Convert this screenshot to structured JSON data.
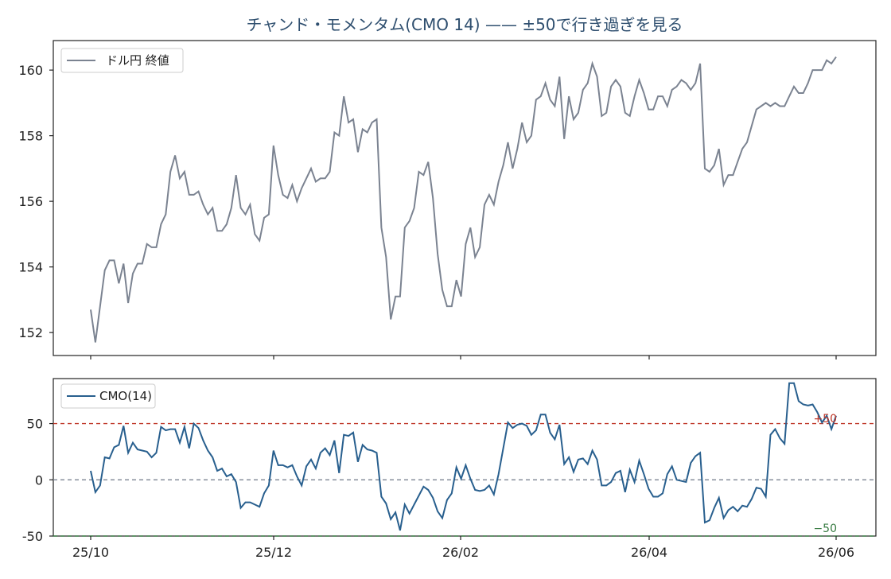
{
  "chart_data": [
    {
      "type": "line",
      "title": "チャンド・モメンタム(CMO 14) —— ±50で行き過ぎを見る",
      "xlabel": "",
      "ylabel": "",
      "x_tick_labels": [
        "25/10",
        "25/12",
        "26/02",
        "26/04",
        "26/06"
      ],
      "y_ticks": [
        152,
        154,
        156,
        158,
        160
      ],
      "ylim": [
        151.3,
        160.9
      ],
      "grid": false,
      "legend_position": "top-left",
      "series": [
        {
          "name": "ドル円 終値",
          "color": "#7b8391",
          "values": [
            152.7,
            151.7,
            152.8,
            153.9,
            154.2,
            154.2,
            153.5,
            154.1,
            152.9,
            153.8,
            154.1,
            154.1,
            154.7,
            154.6,
            154.6,
            155.3,
            155.6,
            156.9,
            157.4,
            156.7,
            156.9,
            156.2,
            156.2,
            156.3,
            155.9,
            155.6,
            155.8,
            155.1,
            155.1,
            155.3,
            155.8,
            156.8,
            155.8,
            155.6,
            155.9,
            155.0,
            154.8,
            155.5,
            155.6,
            157.7,
            156.8,
            156.2,
            156.1,
            156.5,
            156.0,
            156.4,
            156.7,
            157.0,
            156.6,
            156.7,
            156.7,
            156.9,
            158.1,
            158.0,
            159.2,
            158.4,
            158.5,
            157.5,
            158.2,
            158.1,
            158.4,
            158.5,
            155.2,
            154.3,
            152.4,
            153.1,
            153.1,
            155.2,
            155.4,
            155.8,
            156.9,
            156.8,
            157.2,
            156.1,
            154.4,
            153.3,
            152.8,
            152.8,
            153.6,
            153.1,
            154.7,
            155.2,
            154.3,
            154.6,
            155.9,
            156.2,
            155.9,
            156.6,
            157.1,
            157.8,
            157.0,
            157.6,
            158.4,
            157.8,
            158.0,
            159.1,
            159.2,
            159.6,
            159.1,
            158.9,
            159.8,
            157.9,
            159.2,
            158.5,
            158.7,
            159.4,
            159.6,
            160.2,
            159.8,
            158.6,
            158.7,
            159.5,
            159.7,
            159.5,
            158.7,
            158.6,
            159.2,
            159.7,
            159.3,
            158.8,
            158.8,
            159.2,
            159.2,
            158.9,
            159.4,
            159.5,
            159.7,
            159.6,
            159.4,
            159.6,
            160.2,
            157.0,
            156.9,
            157.1,
            157.6,
            156.5,
            156.8,
            156.8,
            157.2,
            157.6,
            157.8,
            158.3,
            158.8,
            158.9,
            159.0,
            158.9,
            159.0,
            158.9,
            158.9,
            159.2,
            159.5,
            159.3,
            159.3,
            159.6,
            160.0,
            160.0,
            160.0,
            160.3,
            160.2,
            160.4
          ]
        }
      ]
    },
    {
      "type": "line",
      "title": "",
      "xlabel": "",
      "ylabel": "",
      "x_tick_labels": [
        "25/10",
        "25/12",
        "26/02",
        "26/04",
        "26/06"
      ],
      "y_ticks": [
        -50,
        0,
        50
      ],
      "ylim": [
        -50,
        90
      ],
      "grid": false,
      "legend_position": "top-left",
      "reference_lines": [
        {
          "value": 50,
          "label": "+50",
          "color": "#c0392b"
        },
        {
          "value": 0,
          "label": "",
          "color": "#7b8391"
        },
        {
          "value": -50,
          "label": "−50",
          "color": "#3a7d44"
        }
      ],
      "series": [
        {
          "name": "CMO(14)",
          "color": "#285f8e",
          "values": [
            8,
            -11,
            -5,
            20,
            19,
            29,
            31,
            48,
            24,
            33,
            27,
            26,
            25,
            20,
            24,
            47,
            44,
            45,
            45,
            33,
            47,
            28,
            50,
            46,
            35,
            26,
            20,
            8,
            10,
            3,
            5,
            -2,
            -25,
            -20,
            -20,
            -22,
            -24,
            -12,
            -5,
            26,
            13,
            13,
            11,
            13,
            3,
            -5,
            12,
            18,
            10,
            24,
            28,
            22,
            35,
            6,
            40,
            39,
            42,
            16,
            31,
            27,
            26,
            24,
            -15,
            -21,
            -35,
            -29,
            -45,
            -22,
            -30,
            -22,
            -14,
            -6,
            -9,
            -16,
            -28,
            -34,
            -18,
            -12,
            11,
            1,
            13,
            1,
            -9,
            -10,
            -9,
            -5,
            -13,
            5,
            28,
            51,
            46,
            49,
            50,
            48,
            40,
            44,
            58,
            58,
            42,
            36,
            49,
            14,
            20,
            7,
            18,
            19,
            14,
            26,
            18,
            -5,
            -5,
            -2,
            6,
            8,
            -11,
            9,
            -2,
            17,
            5,
            -8,
            -15,
            -15,
            -12,
            5,
            12,
            0,
            -1,
            -2,
            15,
            21,
            24,
            -38,
            -36,
            -25,
            -16,
            -34,
            -27,
            -24,
            -28,
            -23,
            -24,
            -17,
            -7,
            -8,
            -15,
            40,
            45,
            37,
            32,
            86,
            86,
            70,
            67,
            66,
            67,
            60,
            51,
            57,
            45,
            57
          ]
        }
      ]
    }
  ]
}
